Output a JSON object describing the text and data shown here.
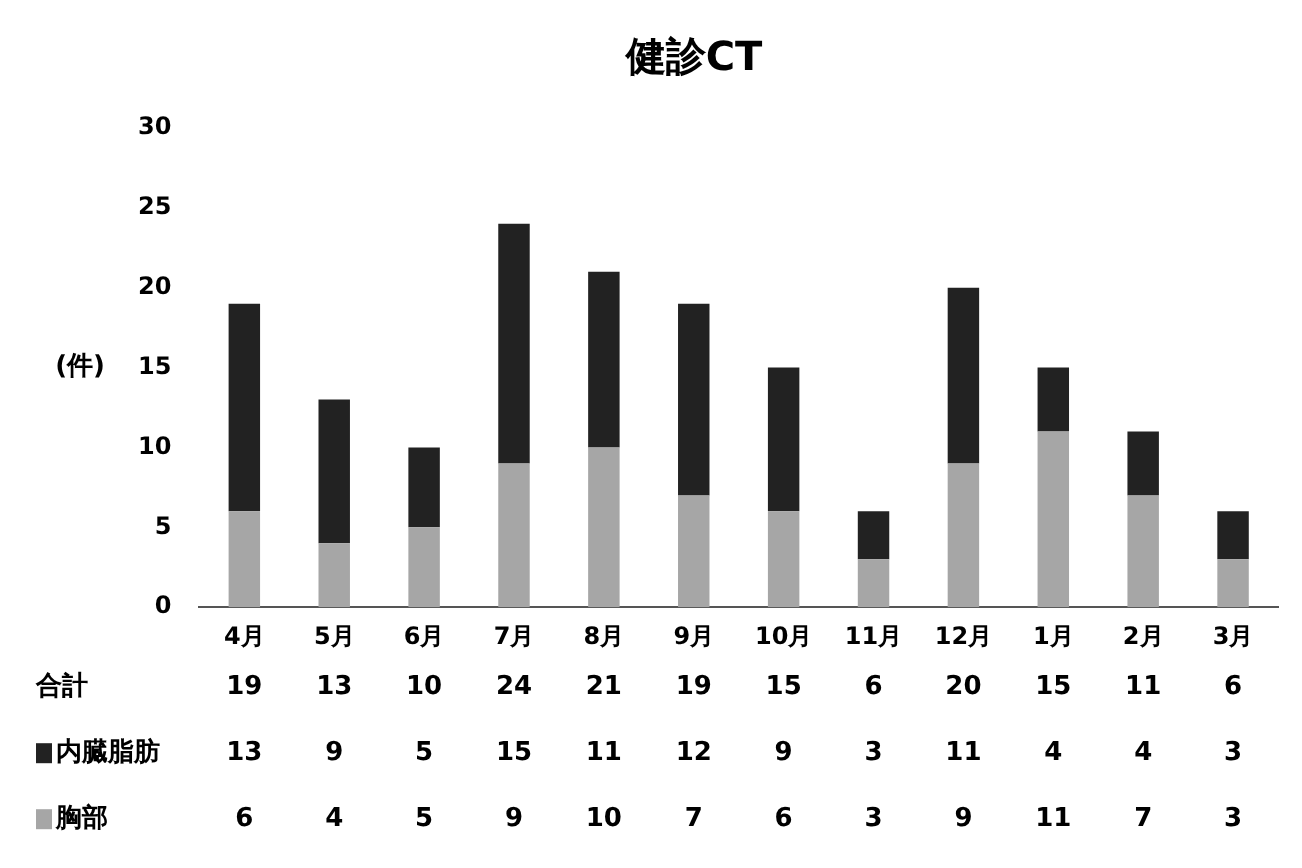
{
  "chart_data": {
    "type": "bar",
    "title": "健診CT",
    "ylabel": "(件)",
    "stacked": true,
    "data_labels": true,
    "legend": "bottom left",
    "grid": false,
    "categories": [
      "4月",
      "5月",
      "6月",
      "7月",
      "8月",
      "9月",
      "10月",
      "11月",
      "12月",
      "1月",
      "2月",
      "3月"
    ],
    "series": [
      {
        "name": "胸部",
        "color": "#a6a6a6",
        "values": [
          6,
          4,
          5,
          9,
          10,
          7,
          6,
          3,
          9,
          11,
          7,
          3
        ]
      },
      {
        "name": "内臓脂肪",
        "color": "#222222",
        "values": [
          13,
          9,
          5,
          15,
          11,
          12,
          9,
          3,
          11,
          4,
          4,
          3
        ]
      }
    ],
    "totals": [
      "19",
      "13",
      "10",
      "24",
      "21",
      "19",
      "15",
      "6",
      "20",
      "15",
      "11",
      "6"
    ],
    "annotations": [
      "合計"
    ],
    "ylim": [
      0,
      30
    ],
    "yticks": [
      0,
      5,
      10,
      15,
      20,
      25,
      30
    ]
  }
}
